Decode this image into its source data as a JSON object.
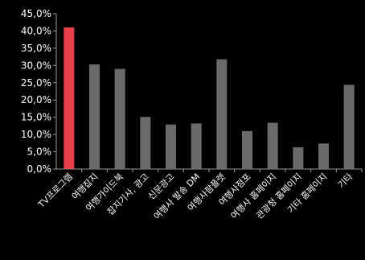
{
  "chart_data": {
    "type": "bar",
    "title": "",
    "xlabel": "",
    "ylabel": "",
    "categories": [
      "TV프로그램",
      "여행잡지",
      "여행가이드북",
      "잡지기사, 광고",
      "신문광고",
      "여행사 발송 DM",
      "여행사팜플렛",
      "여행사점포",
      "여행사 홈페이지",
      "관광청 홈페이지",
      "기타 홈페이지",
      "기타"
    ],
    "values": [
      41.0,
      30.3,
      29.0,
      15.1,
      12.9,
      13.2,
      31.8,
      11.0,
      13.4,
      6.3,
      7.4,
      24.4
    ],
    "ylim": [
      0,
      45
    ],
    "yticks": [
      "0,0%",
      "5,0%",
      "10,0%",
      "15,0%",
      "20,0%",
      "25,0%",
      "30,0%",
      "35,0%",
      "40,0%",
      "45,0%"
    ],
    "highlight_index": 0,
    "colors": {
      "background": "#000000",
      "highlight": "#e8404a",
      "bar": "#6a6a6a",
      "axis": "#9a9a9a",
      "text": "#ffffff"
    },
    "grid": false
  }
}
